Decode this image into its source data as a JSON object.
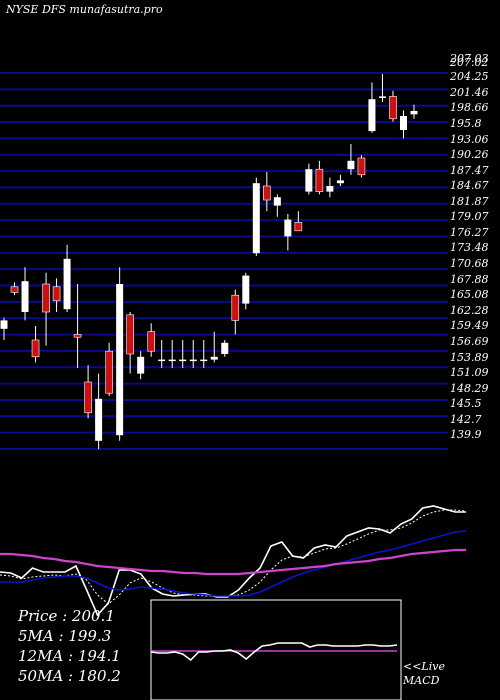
{
  "header": {
    "title": "NYSE DFS munafasutra.pro"
  },
  "summary": {
    "price": "Price   : 200.1",
    "ma5": "5MA : 199.3",
    "ma12": "12MA : 194.1",
    "ma50": "50MA : 180.2"
  },
  "macd_panel": {
    "line1": "<<Live",
    "line2": "MACD"
  },
  "colors": {
    "background": "#000000",
    "grid_band": "#0a0a8c",
    "bull": "#ffffff",
    "bear": "#cc1111",
    "price_line": "#ffffff",
    "ma_fast": "#ffffff",
    "ma_mid": "#1010d0",
    "ma_slow": "#cc44cc"
  },
  "chart_data": [
    {
      "type": "candlestick",
      "title": "NYSE DFS munafasutra.pro",
      "ylim": [
        138.5,
        208.5
      ],
      "y_ticks": [
        "207.03",
        "207.02",
        "204.25",
        "201.46",
        "198.66",
        "195.8",
        "193.06",
        "190.26",
        "187.47",
        "184.67",
        "181.87",
        "179.07",
        "176.27",
        "173.48",
        "170.68",
        "167.88",
        "165.08",
        "162.28",
        "159.49",
        "156.69",
        "153.89",
        "151.09",
        "148.29",
        "145.5",
        "142.7",
        "139.9"
      ],
      "grid": true,
      "candles": [
        {
          "open": 160.5,
          "high": 162.5,
          "low": 158.5,
          "close": 162.0
        },
        {
          "open": 168.0,
          "high": 168.8,
          "low": 166.5,
          "close": 167.0
        },
        {
          "open": 163.5,
          "high": 171.5,
          "low": 162.0,
          "close": 169.0
        },
        {
          "open": 158.5,
          "high": 161.0,
          "low": 154.5,
          "close": 155.5
        },
        {
          "open": 168.5,
          "high": 170.5,
          "low": 157.5,
          "close": 163.5
        },
        {
          "open": 168.0,
          "high": 169.5,
          "low": 163.5,
          "close": 165.5
        },
        {
          "open": 164.0,
          "high": 175.5,
          "low": 163.5,
          "close": 173.0
        },
        {
          "open": 159.5,
          "high": 168.5,
          "low": 153.5,
          "close": 159.0
        },
        {
          "open": 151.0,
          "high": 154.0,
          "low": 144.5,
          "close": 145.5
        },
        {
          "open": 140.5,
          "high": 152.5,
          "low": 139.0,
          "close": 148.0
        },
        {
          "open": 156.5,
          "high": 158.0,
          "low": 148.5,
          "close": 149.0
        },
        {
          "open": 141.5,
          "high": 171.5,
          "low": 140.5,
          "close": 168.5
        },
        {
          "open": 163.0,
          "high": 163.5,
          "low": 152.5,
          "close": 156.0
        },
        {
          "open": 152.5,
          "high": 156.5,
          "low": 151.5,
          "close": 155.5
        },
        {
          "open": 160.0,
          "high": 161.5,
          "low": 155.5,
          "close": 156.5
        },
        {
          "open": 155.0,
          "high": 158.5,
          "low": 153.5,
          "close": 155.0
        },
        {
          "open": 155.0,
          "high": 158.5,
          "low": 153.5,
          "close": 155.0
        },
        {
          "open": 155.0,
          "high": 158.5,
          "low": 153.5,
          "close": 155.0
        },
        {
          "open": 155.0,
          "high": 158.5,
          "low": 153.5,
          "close": 155.0
        },
        {
          "open": 155.0,
          "high": 158.5,
          "low": 153.5,
          "close": 155.0
        },
        {
          "open": 155.0,
          "high": 160.0,
          "low": 154.5,
          "close": 155.5
        },
        {
          "open": 156.0,
          "high": 158.5,
          "low": 155.5,
          "close": 158.0
        },
        {
          "open": 166.5,
          "high": 167.5,
          "low": 159.5,
          "close": 162.0
        },
        {
          "open": 165.0,
          "high": 170.5,
          "low": 164.0,
          "close": 170.0
        },
        {
          "open": 174.0,
          "high": 187.5,
          "low": 173.5,
          "close": 186.5
        },
        {
          "open": 186.0,
          "high": 188.5,
          "low": 181.5,
          "close": 183.5
        },
        {
          "open": 182.5,
          "high": 184.5,
          "low": 180.5,
          "close": 184.0
        },
        {
          "open": 177.0,
          "high": 181.0,
          "low": 174.5,
          "close": 180.0
        },
        {
          "open": 179.5,
          "high": 181.5,
          "low": 178.0,
          "close": 178.0
        },
        {
          "open": 185.0,
          "high": 190.0,
          "low": 184.5,
          "close": 189.0
        },
        {
          "open": 189.0,
          "high": 190.5,
          "low": 184.5,
          "close": 185.0
        },
        {
          "open": 185.0,
          "high": 187.5,
          "low": 184.0,
          "close": 186.0
        },
        {
          "open": 186.5,
          "high": 188.0,
          "low": 186.0,
          "close": 187.0
        },
        {
          "open": 189.0,
          "high": 193.5,
          "low": 188.0,
          "close": 190.5
        },
        {
          "open": 191.0,
          "high": 191.5,
          "low": 187.5,
          "close": 188.0
        },
        {
          "open": 195.8,
          "high": 204.5,
          "low": 195.5,
          "close": 201.5
        },
        {
          "open": 202.0,
          "high": 206.0,
          "low": 201.0,
          "close": 202.0
        },
        {
          "open": 202.0,
          "high": 203.0,
          "low": 197.5,
          "close": 198.0
        },
        {
          "open": 196.0,
          "high": 199.5,
          "low": 194.5,
          "close": 198.5
        },
        {
          "open": 198.8,
          "high": 200.5,
          "low": 198.0,
          "close": 199.4
        }
      ]
    },
    {
      "type": "line",
      "title": "",
      "legend": "none",
      "series": [
        {
          "values": [
            572,
            573,
            578,
            568,
            572,
            572,
            572,
            566,
            590,
            615,
            603,
            570,
            570,
            574,
            588,
            594,
            596,
            595,
            594,
            594,
            597,
            597,
            590,
            578,
            568,
            546,
            542,
            556,
            558,
            548,
            545,
            547,
            536,
            532,
            528,
            529,
            533,
            524,
            519,
            508,
            506,
            509,
            512,
            512
          ]
        },
        {
          "values": [
            575,
            576,
            579,
            577,
            576,
            575,
            576,
            574,
            580,
            595,
            604,
            595,
            583,
            578,
            582,
            588,
            593,
            595,
            595,
            596,
            596,
            596,
            595,
            590,
            582,
            570,
            560,
            556,
            557,
            553,
            549,
            548,
            544,
            539,
            534,
            530,
            530,
            528,
            523,
            516,
            512,
            510,
            510,
            511
          ]
        },
        {
          "values": [
            582,
            582,
            582,
            580,
            578,
            577,
            576,
            576,
            578,
            583,
            588,
            590,
            589,
            587,
            588,
            589,
            591,
            593,
            594,
            595,
            596,
            596,
            596,
            595,
            592,
            587,
            582,
            577,
            573,
            570,
            567,
            564,
            561,
            558,
            555,
            552,
            550,
            547,
            544,
            541,
            538,
            535,
            532,
            531
          ]
        },
        {
          "values": [
            554,
            554,
            555,
            556,
            558,
            559,
            561,
            562,
            564,
            566,
            567,
            568,
            569,
            570,
            571,
            571,
            572,
            573,
            573,
            574,
            574,
            574,
            574,
            573,
            572,
            571,
            570,
            569,
            568,
            567,
            566,
            564,
            563,
            562,
            561,
            559,
            558,
            556,
            554,
            553,
            552,
            551,
            550,
            550
          ]
        }
      ]
    },
    {
      "type": "line",
      "title": "",
      "legend": "none",
      "series": [
        {
          "values": [
            652,
            653,
            653,
            652,
            654,
            660,
            652,
            652,
            651,
            651,
            650,
            653,
            659,
            652,
            646,
            645,
            643,
            643,
            643,
            643,
            647,
            645,
            645,
            646,
            646,
            646,
            646,
            645,
            645,
            646,
            646,
            645
          ]
        },
        {
          "values": [
            651,
            651,
            651,
            651,
            651,
            651,
            651,
            651,
            651,
            651,
            651,
            651,
            651,
            651,
            651,
            651,
            651,
            651,
            651,
            651,
            651,
            651,
            651,
            651,
            651,
            651,
            651,
            651,
            651,
            651,
            651,
            651
          ]
        }
      ]
    }
  ]
}
